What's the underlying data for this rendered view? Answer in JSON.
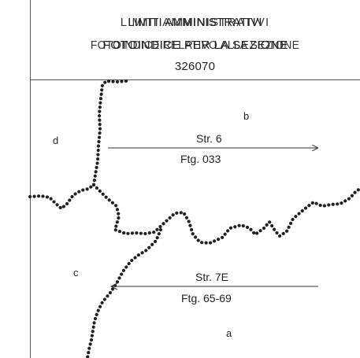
{
  "header": {
    "title_line_1": "LIMITI AMMINISTRATIVI",
    "title_line_1_overlap": "LIMITI AMMINISTRATIVI",
    "title_line_2": "FOTOINDICE PER LA SEZIONE",
    "title_line_2_overlap": "FOTOINDICE RELATIVO ALLA SEZIONE",
    "section_code": "326070"
  },
  "areas": {
    "a": "a",
    "b": "b",
    "c": "c",
    "d": "d"
  },
  "strips": [
    {
      "name": "Str. 6",
      "frames": "Ftg. 033"
    },
    {
      "name": "Str. 7E",
      "frames": "Ftg. 65-69"
    }
  ],
  "colors": {
    "boundary_dots": "#222222",
    "lines": "#333333",
    "text": "#222222"
  }
}
